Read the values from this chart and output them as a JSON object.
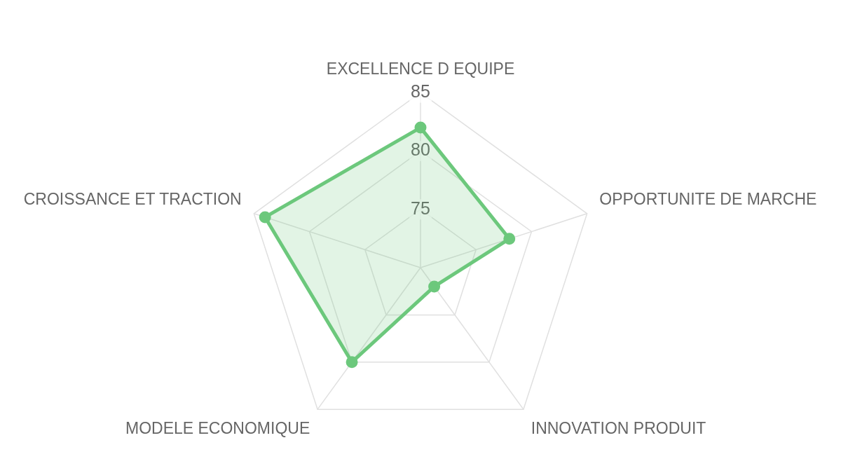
{
  "chart_data": {
    "type": "radar",
    "categories": [
      "EXCELLENCE D EQUIPE",
      "OPPORTUNITE DE MARCHE",
      "INNOVATION PRODUIT",
      "MODELE ECONOMIQUE",
      "CROISSANCE ET TRACTION"
    ],
    "series": [
      {
        "color": "#6cc87c",
        "values": [
          82,
          78,
          72,
          80,
          84
        ]
      }
    ],
    "ylim": [
      70,
      85
    ],
    "yticks": [
      75,
      80,
      85
    ],
    "grid": true,
    "marker": "circle"
  }
}
